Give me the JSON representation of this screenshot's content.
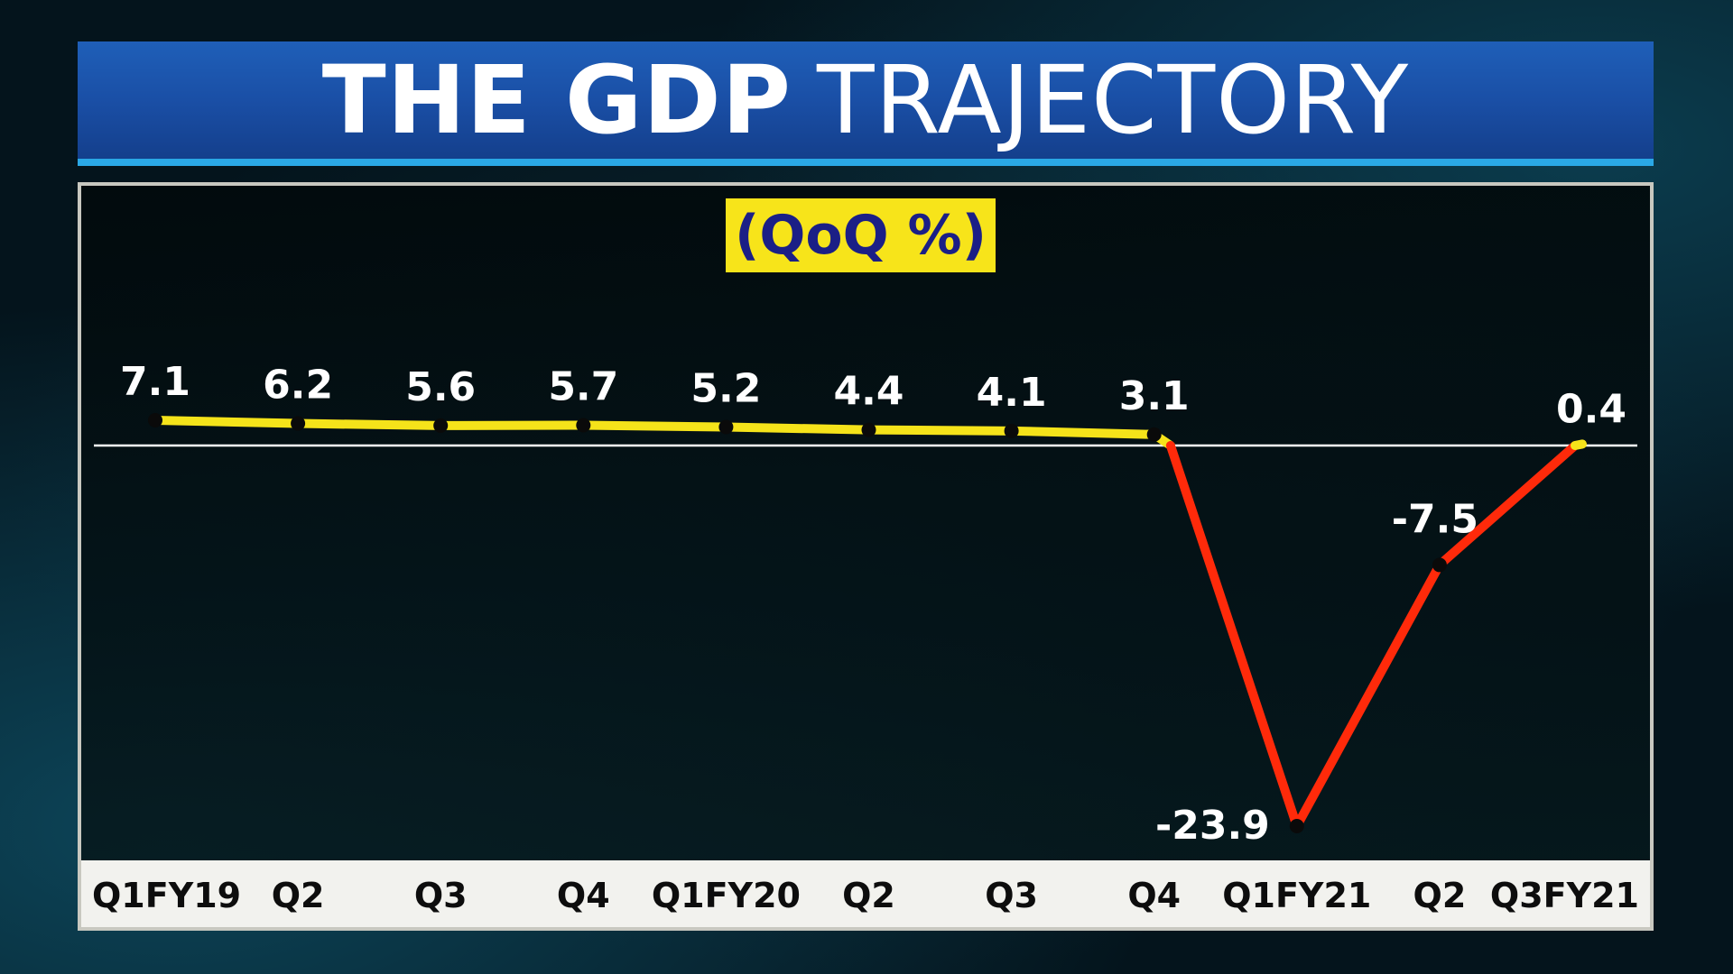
{
  "title": {
    "bold": "THE GDP",
    "light": "TRAJECTORY"
  },
  "colors": {
    "positive_line": "#f5e31a",
    "negative_line": "#ff2a0a",
    "marker": "#0a0a0a",
    "zero_line": "#ffffff",
    "title_bar": "#1a4fa6",
    "unit_label_bg": "#f7e41a",
    "unit_label_text": "#1b1f86"
  },
  "chart_data": {
    "type": "line",
    "title": "THE GDP TRAJECTORY",
    "unit_label": "(QoQ %)",
    "categories": [
      "Q1FY19",
      "Q2",
      "Q3",
      "Q4",
      "Q1FY20",
      "Q2",
      "Q3",
      "Q4",
      "Q1FY21",
      "Q2",
      "Q3FY21"
    ],
    "values": [
      7.1,
      6.2,
      5.6,
      5.7,
      5.2,
      4.4,
      4.1,
      3.1,
      -23.9,
      -7.5,
      0.4
    ],
    "value_labels": [
      "7.1",
      "6.2",
      "5.6",
      "5.7",
      "5.2",
      "4.4",
      "4.1",
      "3.1",
      "-23.9",
      "-7.5",
      "0.4"
    ],
    "reference_line": 0,
    "ylim": [
      -25,
      10
    ],
    "grid": false,
    "legend": "none"
  }
}
